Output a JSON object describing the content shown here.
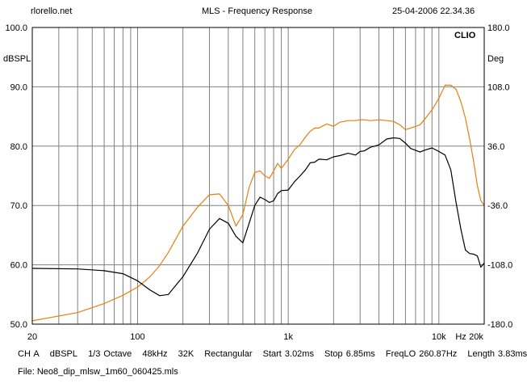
{
  "header": {
    "site": "rlorello.net",
    "title": "MLS - Frequency Response",
    "timestamp": "25-04-2006 22.34.36"
  },
  "brand": "CLIO",
  "info": {
    "channel": "CH A",
    "unit": "dBSPL",
    "smoothing": "1/3 Octave",
    "sample_rate": "48kHz",
    "size": "32K",
    "window": "Rectangular",
    "start": "Start 3.02ms",
    "stop": "Stop 6.85ms",
    "freqlo": "FreqLO 260.87Hz",
    "length": "Length 3.83ms"
  },
  "file": "File: Neo8_dip_mlsw_1m60_060425.mls",
  "colors": {
    "magnitude": "#000000",
    "phase": "#e87f0c",
    "grid": "#808080",
    "frame": "#000000"
  },
  "chart_data": {
    "type": "line",
    "title": "MLS - Frequency Response",
    "xlabel": "Hz",
    "ylabel": "dBSPL",
    "y2label": "Deg",
    "xscale": "log",
    "xlim": [
      20,
      20000
    ],
    "ylim": [
      50,
      100
    ],
    "y2lim": [
      -180,
      180
    ],
    "grid": true,
    "x_ticks": [
      "20",
      "100",
      "1k",
      "10k",
      "Hz",
      "20k"
    ],
    "y_ticks": [
      "100.0",
      "90.0",
      "80.0",
      "70.0",
      "60.0",
      "50.0"
    ],
    "y2_ticks": [
      "180.0",
      "108.0",
      "36.0",
      "-36.0",
      "-108.0",
      "-180.0"
    ],
    "series": [
      {
        "axis": "left",
        "x": [
          20,
          40,
          60,
          80,
          100,
          120,
          140,
          160,
          200,
          250,
          300,
          350,
          400,
          450,
          500,
          550,
          600,
          650,
          700,
          750,
          800,
          850,
          900,
          1000,
          1100,
          1200,
          1300,
          1400,
          1500,
          1600,
          1800,
          2000,
          2200,
          2500,
          2800,
          3000,
          3200,
          3500,
          4000,
          4500,
          5000,
          5500,
          6000,
          6500,
          7000,
          7500,
          8000,
          9000,
          10000,
          11000,
          12000,
          13000,
          14000,
          15000,
          16000,
          17000,
          18000,
          19000,
          20000
        ],
        "values": [
          59.4,
          59.3,
          59.0,
          58.5,
          57.3,
          55.8,
          54.8,
          55.0,
          58.0,
          62.0,
          66.0,
          67.8,
          67.0,
          64.8,
          63.7,
          67.0,
          70.0,
          71.4,
          71.0,
          70.5,
          70.8,
          72.0,
          72.5,
          72.6,
          74.0,
          75.0,
          76.0,
          77.2,
          77.3,
          77.8,
          77.7,
          78.2,
          78.4,
          78.8,
          78.5,
          79.1,
          79.2,
          79.8,
          80.2,
          81.2,
          81.4,
          81.3,
          80.5,
          79.6,
          79.3,
          79.0,
          79.3,
          79.7,
          79.1,
          78.5,
          76.0,
          70.5,
          66.0,
          62.5,
          61.9,
          61.8,
          61.5,
          59.6,
          60.3
        ]
      },
      {
        "axis": "right",
        "x": [
          20,
          40,
          60,
          80,
          100,
          120,
          140,
          160,
          200,
          250,
          300,
          350,
          400,
          450,
          500,
          550,
          600,
          650,
          700,
          750,
          800,
          850,
          900,
          1000,
          1100,
          1200,
          1300,
          1400,
          1500,
          1600,
          1800,
          2000,
          2200,
          2500,
          2800,
          3000,
          3200,
          3500,
          4000,
          4500,
          5000,
          5500,
          6000,
          6500,
          7000,
          7500,
          8000,
          9000,
          10000,
          11000,
          12000,
          13000,
          14000,
          15000,
          16000,
          17000,
          18000,
          19000,
          20000
        ],
        "values": [
          -176,
          -166,
          -155,
          -145,
          -135,
          -123,
          -109,
          -93,
          -61,
          -38,
          -23,
          -22,
          -36,
          -61,
          -47,
          -14,
          4,
          6,
          0,
          -3,
          6,
          15,
          9,
          20,
          32,
          38,
          47,
          54,
          58,
          58,
          63,
          60,
          65,
          67,
          67,
          68,
          68,
          67,
          68,
          67,
          66,
          62,
          56,
          58,
          60,
          62,
          68,
          80,
          94,
          110,
          110,
          105,
          90,
          70,
          45,
          18,
          -12,
          -30,
          -36
        ]
      }
    ]
  }
}
